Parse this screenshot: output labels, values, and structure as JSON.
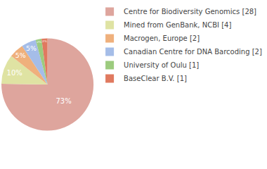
{
  "chart_data": {
    "type": "pie",
    "categories": [
      "Centre for Biodiversity Genomics [28]",
      "Mined from GenBank, NCBI [4]",
      "Macrogen, Europe [2]",
      "Canadian Centre for DNA Barcoding [2]",
      "University of Oulu [1]",
      "BaseClear B.V. [1]"
    ],
    "values": [
      73,
      10,
      5,
      5,
      2,
      2
    ],
    "value_labels": [
      "73%",
      "10%",
      "5%",
      "5%",
      "2%",
      "2%"
    ],
    "colors": [
      "#dea59d",
      "#dfe3a3",
      "#efb07c",
      "#a5bde8",
      "#9ccb7e",
      "#e0795f"
    ],
    "data_labels": true,
    "legend": "right"
  }
}
